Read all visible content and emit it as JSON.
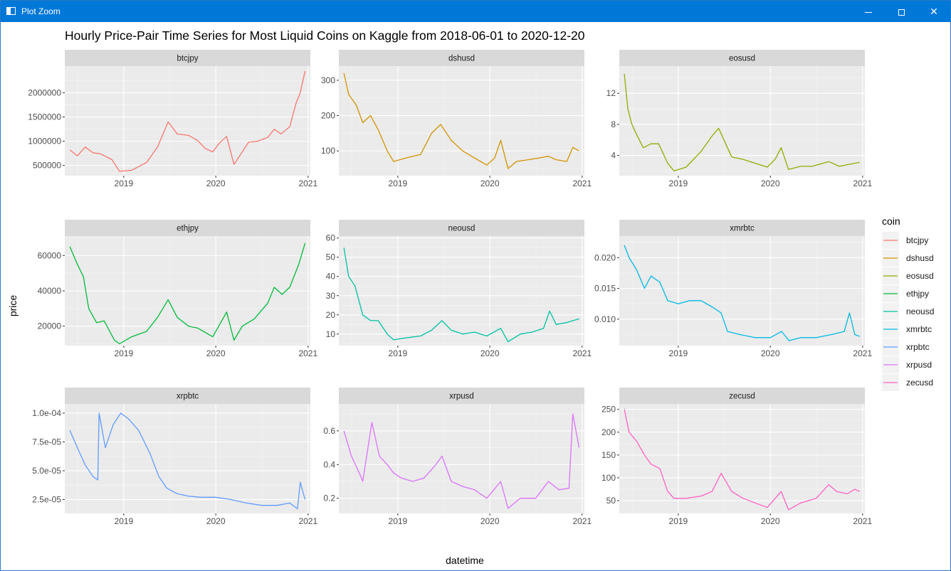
{
  "window": {
    "title": "Plot Zoom"
  },
  "chart_data": {
    "type": "line",
    "title": "Hourly Price-Pair Time Series for Most Liquid Coins on Kaggle from 2018-06-01 to 2020-12-20",
    "xlabel": "datetime",
    "ylabel": "price",
    "x_ticks": [
      "2019",
      "2020",
      "2021"
    ],
    "x_range": [
      "2018-05-12",
      "2021-01-10"
    ],
    "legend": {
      "title": "coin",
      "position": "right"
    },
    "grid": true,
    "facets": [
      {
        "name": "btcjpy",
        "color": "#F8766D",
        "y_ticks": [
          "500000",
          "1000000",
          "1500000",
          "2000000"
        ],
        "y_tick_values": [
          500000,
          1000000,
          1500000,
          2000000
        ],
        "ylim": [
          290000,
          2550000
        ],
        "x": [
          "2018-06-01",
          "2018-07-01",
          "2018-08-01",
          "2018-09-01",
          "2018-10-01",
          "2018-11-15",
          "2018-12-15",
          "2019-02-01",
          "2019-04-01",
          "2019-05-15",
          "2019-06-26",
          "2019-08-01",
          "2019-09-15",
          "2019-10-20",
          "2019-11-20",
          "2019-12-20",
          "2020-01-15",
          "2020-02-13",
          "2020-03-13",
          "2020-04-15",
          "2020-05-10",
          "2020-06-15",
          "2020-07-25",
          "2020-08-20",
          "2020-09-15",
          "2020-10-20",
          "2020-11-15",
          "2020-12-01",
          "2020-12-20"
        ],
        "y": [
          820000,
          700000,
          880000,
          760000,
          740000,
          620000,
          380000,
          400000,
          560000,
          880000,
          1400000,
          1150000,
          1120000,
          1020000,
          850000,
          780000,
          960000,
          1100000,
          520000,
          780000,
          980000,
          1000000,
          1080000,
          1250000,
          1150000,
          1300000,
          1800000,
          2000000,
          2450000
        ]
      },
      {
        "name": "dshusd",
        "color": "#D39200",
        "y_ticks": [
          "100",
          "200",
          "300"
        ],
        "y_tick_values": [
          100,
          200,
          300
        ],
        "ylim": [
          30,
          340
        ],
        "x": [
          "2018-06-01",
          "2018-06-20",
          "2018-07-20",
          "2018-08-15",
          "2018-09-15",
          "2018-10-15",
          "2018-11-20",
          "2018-12-15",
          "2019-02-01",
          "2019-04-01",
          "2019-05-15",
          "2019-06-20",
          "2019-08-01",
          "2019-09-15",
          "2019-11-01",
          "2019-12-20",
          "2020-01-20",
          "2020-02-13",
          "2020-03-13",
          "2020-04-15",
          "2020-06-01",
          "2020-07-15",
          "2020-08-20",
          "2020-09-20",
          "2020-11-01",
          "2020-11-25",
          "2020-12-20"
        ],
        "y": [
          320,
          260,
          230,
          180,
          200,
          160,
          100,
          70,
          80,
          90,
          150,
          175,
          130,
          100,
          80,
          60,
          80,
          130,
          50,
          70,
          75,
          80,
          85,
          75,
          70,
          110,
          100
        ]
      },
      {
        "name": "eosusd",
        "color": "#93AA00",
        "y_ticks": [
          "4",
          "8",
          "12"
        ],
        "y_tick_values": [
          4,
          8,
          12
        ],
        "ylim": [
          1.4,
          15.5
        ],
        "x": [
          "2018-06-01",
          "2018-06-15",
          "2018-07-01",
          "2018-07-15",
          "2018-08-15",
          "2018-09-15",
          "2018-10-15",
          "2018-11-20",
          "2018-12-15",
          "2019-02-01",
          "2019-04-01",
          "2019-05-15",
          "2019-06-10",
          "2019-07-01",
          "2019-08-01",
          "2019-09-15",
          "2019-11-01",
          "2019-12-20",
          "2020-01-20",
          "2020-02-13",
          "2020-03-13",
          "2020-05-01",
          "2020-06-15",
          "2020-08-20",
          "2020-10-01",
          "2020-11-15",
          "2020-12-20"
        ],
        "y": [
          14.5,
          10,
          8,
          7,
          5,
          5.5,
          5.5,
          3,
          2,
          2.5,
          4.5,
          6.5,
          7.5,
          6,
          3.8,
          3.5,
          3,
          2.5,
          3.5,
          5,
          2.2,
          2.6,
          2.6,
          3.2,
          2.6,
          2.9,
          3.1
        ]
      },
      {
        "name": "ethjpy",
        "color": "#00BA38",
        "y_ticks": [
          "20000",
          "40000",
          "60000"
        ],
        "y_tick_values": [
          20000,
          40000,
          60000
        ],
        "ylim": [
          9000,
          71000
        ],
        "x": [
          "2018-06-01",
          "2018-07-01",
          "2018-07-25",
          "2018-08-15",
          "2018-09-15",
          "2018-10-15",
          "2018-11-25",
          "2018-12-15",
          "2019-02-01",
          "2019-04-01",
          "2019-05-15",
          "2019-06-26",
          "2019-08-01",
          "2019-09-15",
          "2019-10-20",
          "2019-12-20",
          "2020-02-13",
          "2020-03-13",
          "2020-04-15",
          "2020-06-01",
          "2020-07-25",
          "2020-08-20",
          "2020-09-20",
          "2020-10-20",
          "2020-11-25",
          "2020-12-20"
        ],
        "y": [
          65000,
          55000,
          48000,
          30000,
          22000,
          23000,
          12000,
          10000,
          14000,
          17000,
          25000,
          35000,
          25000,
          20000,
          19000,
          14000,
          28000,
          12000,
          20000,
          24000,
          33000,
          42000,
          38000,
          42000,
          55000,
          67000
        ]
      },
      {
        "name": "neousd",
        "color": "#00C19F",
        "y_ticks": [
          "10",
          "20",
          "30",
          "40",
          "50",
          "60"
        ],
        "y_tick_values": [
          10,
          20,
          30,
          40,
          50,
          60
        ],
        "ylim": [
          4,
          61
        ],
        "x": [
          "2018-06-01",
          "2018-06-20",
          "2018-07-15",
          "2018-08-15",
          "2018-09-15",
          "2018-10-15",
          "2018-11-20",
          "2018-12-15",
          "2019-02-01",
          "2019-04-01",
          "2019-05-15",
          "2019-06-25",
          "2019-08-01",
          "2019-09-15",
          "2019-11-01",
          "2019-12-20",
          "2020-02-13",
          "2020-03-13",
          "2020-05-01",
          "2020-06-15",
          "2020-08-01",
          "2020-08-25",
          "2020-09-20",
          "2020-11-01",
          "2020-12-20"
        ],
        "y": [
          55,
          40,
          35,
          20,
          17,
          17,
          10,
          7,
          8,
          9,
          12,
          17,
          12,
          10,
          11,
          9,
          13,
          6,
          10,
          11,
          13,
          22,
          15,
          16,
          18
        ]
      },
      {
        "name": "xmrbtc",
        "color": "#00B9E3",
        "y_ticks": [
          "0.010",
          "0.015",
          "0.020"
        ],
        "y_tick_values": [
          0.01,
          0.015,
          0.02
        ],
        "ylim": [
          0.0057,
          0.0235
        ],
        "x": [
          "2018-06-01",
          "2018-06-20",
          "2018-07-20",
          "2018-08-20",
          "2018-09-15",
          "2018-10-20",
          "2018-11-20",
          "2019-01-01",
          "2019-02-15",
          "2019-04-01",
          "2019-05-15",
          "2019-06-20",
          "2019-07-15",
          "2019-09-01",
          "2019-11-01",
          "2020-01-01",
          "2020-02-15",
          "2020-03-15",
          "2020-05-01",
          "2020-07-01",
          "2020-09-01",
          "2020-10-20",
          "2020-11-10",
          "2020-12-01",
          "2020-12-20"
        ],
        "y": [
          0.022,
          0.02,
          0.018,
          0.015,
          0.017,
          0.016,
          0.013,
          0.0125,
          0.013,
          0.013,
          0.012,
          0.011,
          0.008,
          0.0075,
          0.007,
          0.007,
          0.008,
          0.0065,
          0.007,
          0.007,
          0.0075,
          0.008,
          0.011,
          0.0075,
          0.0072
        ]
      },
      {
        "name": "xrpbtc",
        "color": "#619CFF",
        "y_ticks": [
          "2.5e-05",
          "5.0e-05",
          "7.5e-05",
          "1.0e-04"
        ],
        "y_tick_values": [
          2.5e-05,
          5e-05,
          7.5e-05,
          0.0001
        ],
        "ylim": [
          1.3e-05,
          0.000108
        ],
        "x": [
          "2018-06-01",
          "2018-07-01",
          "2018-08-01",
          "2018-09-01",
          "2018-09-20",
          "2018-09-25",
          "2018-10-20",
          "2018-11-20",
          "2018-12-20",
          "2019-01-20",
          "2019-03-01",
          "2019-04-15",
          "2019-05-20",
          "2019-06-20",
          "2019-08-01",
          "2019-09-15",
          "2019-11-01",
          "2020-01-01",
          "2020-03-01",
          "2020-05-01",
          "2020-07-01",
          "2020-09-01",
          "2020-10-20",
          "2020-11-20",
          "2020-12-01",
          "2020-12-20"
        ],
        "y": [
          8.5e-05,
          7e-05,
          5.5e-05,
          4.5e-05,
          4.2e-05,
          0.0001,
          7e-05,
          9e-05,
          0.0001,
          9.5e-05,
          8.5e-05,
          6.5e-05,
          4.5e-05,
          3.5e-05,
          3e-05,
          2.8e-05,
          2.7e-05,
          2.7e-05,
          2.5e-05,
          2.2e-05,
          2e-05,
          2e-05,
          2.2e-05,
          1.7e-05,
          4e-05,
          2.5e-05
        ]
      },
      {
        "name": "xrpusd",
        "color": "#DB72FB",
        "y_ticks": [
          "0.2",
          "0.4",
          "0.6"
        ],
        "y_tick_values": [
          0.2,
          0.4,
          0.6
        ],
        "ylim": [
          0.11,
          0.76
        ],
        "x": [
          "2018-06-01",
          "2018-07-01",
          "2018-08-01",
          "2018-08-15",
          "2018-09-20",
          "2018-10-20",
          "2018-11-20",
          "2018-12-15",
          "2019-01-15",
          "2019-03-01",
          "2019-04-15",
          "2019-06-01",
          "2019-06-25",
          "2019-08-01",
          "2019-09-15",
          "2019-11-01",
          "2019-12-20",
          "2020-02-13",
          "2020-03-13",
          "2020-05-01",
          "2020-07-01",
          "2020-08-20",
          "2020-10-01",
          "2020-11-10",
          "2020-11-25",
          "2020-12-20"
        ],
        "y": [
          0.6,
          0.45,
          0.35,
          0.3,
          0.65,
          0.45,
          0.4,
          0.35,
          0.32,
          0.3,
          0.32,
          0.4,
          0.45,
          0.3,
          0.27,
          0.25,
          0.2,
          0.3,
          0.14,
          0.2,
          0.2,
          0.3,
          0.25,
          0.26,
          0.7,
          0.5
        ]
      },
      {
        "name": "zecusd",
        "color": "#FF61C3",
        "y_ticks": [
          "50",
          "100",
          "150",
          "200",
          "250"
        ],
        "y_tick_values": [
          50,
          100,
          150,
          200,
          250
        ],
        "ylim": [
          22,
          262
        ],
        "x": [
          "2018-06-01",
          "2018-06-20",
          "2018-07-20",
          "2018-08-20",
          "2018-09-15",
          "2018-10-20",
          "2018-11-20",
          "2018-12-15",
          "2019-02-01",
          "2019-04-01",
          "2019-05-15",
          "2019-06-20",
          "2019-08-01",
          "2019-09-15",
          "2019-11-01",
          "2019-12-20",
          "2020-02-13",
          "2020-03-13",
          "2020-05-01",
          "2020-07-01",
          "2020-08-20",
          "2020-09-20",
          "2020-11-01",
          "2020-12-01",
          "2020-12-20"
        ],
        "y": [
          250,
          200,
          180,
          150,
          130,
          120,
          70,
          55,
          55,
          60,
          70,
          110,
          70,
          55,
          45,
          35,
          70,
          30,
          45,
          55,
          85,
          70,
          65,
          75,
          70
        ]
      }
    ]
  }
}
